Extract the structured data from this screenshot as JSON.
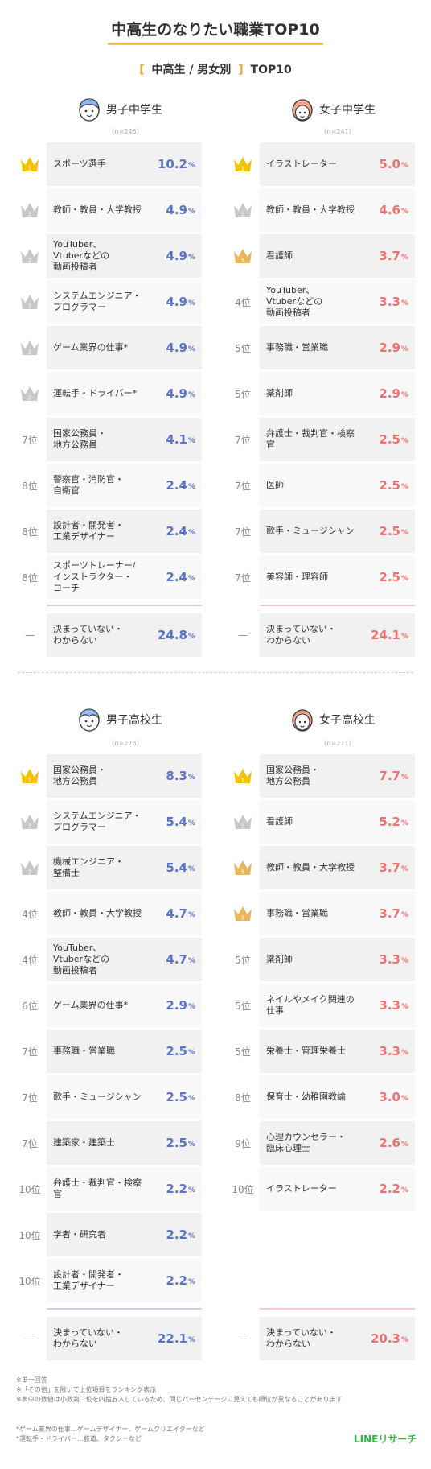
{
  "title": "中高生のなりたい職業TOP10",
  "subtitle": {
    "open": "[",
    "text": "中高生 / 男女別",
    "close": "]",
    "suffix": "TOP10"
  },
  "unit": "%",
  "crown_colors": {
    "gold": "#f2c300",
    "silver": "#c8c8c8",
    "bronze": "#e9b75a"
  },
  "series_colors": {
    "boys": "#5b74c8",
    "girls": "#ee7070"
  },
  "chart_data": [
    {
      "type": "table",
      "title": "男子中学生",
      "sample": "（n=246）",
      "rows": [
        {
          "rank": "1",
          "crown": "gold",
          "job": "スポーツ選手",
          "value": 10.2
        },
        {
          "rank": "2",
          "crown": "silver",
          "job": "教師・教員・大学教授",
          "value": 4.9
        },
        {
          "rank": "2",
          "crown": "silver",
          "job": "YouTuber、\nVtuberなどの\n動画投稿者",
          "value": 4.9
        },
        {
          "rank": "2",
          "crown": "silver",
          "job": "システムエンジニア・\nプログラマー",
          "value": 4.9
        },
        {
          "rank": "2",
          "crown": "silver",
          "job": "ゲーム業界の仕事*",
          "value": 4.9
        },
        {
          "rank": "2",
          "crown": "silver",
          "job": "運転手・ドライバー*",
          "value": 4.9
        },
        {
          "rank": "7位",
          "crown": "",
          "job": "国家公務員・\n地方公務員",
          "value": 4.1
        },
        {
          "rank": "8位",
          "crown": "",
          "job": "警察官・消防官・\n自衛官",
          "value": 2.4
        },
        {
          "rank": "8位",
          "crown": "",
          "job": "設計者・開発者・\n工業デザイナー",
          "value": 2.4
        },
        {
          "rank": "8位",
          "crown": "",
          "job": "スポーツトレーナー/\nインストラクター・\nコーチ",
          "value": 2.4
        }
      ],
      "undecided": {
        "rank": "—",
        "job": "決まっていない・\nわからない",
        "value": 24.8
      }
    },
    {
      "type": "table",
      "title": "女子中学生",
      "sample": "（n=241）",
      "rows": [
        {
          "rank": "1",
          "crown": "gold",
          "job": "イラストレーター",
          "value": 5.0
        },
        {
          "rank": "2",
          "crown": "silver",
          "job": "教師・教員・大学教授",
          "value": 4.6
        },
        {
          "rank": "3",
          "crown": "bronze",
          "job": "看護師",
          "value": 3.7
        },
        {
          "rank": "4位",
          "crown": "",
          "job": "YouTuber、\nVtuberなどの\n動画投稿者",
          "value": 3.3
        },
        {
          "rank": "5位",
          "crown": "",
          "job": "事務職・営業職",
          "value": 2.9
        },
        {
          "rank": "5位",
          "crown": "",
          "job": "薬剤師",
          "value": 2.9
        },
        {
          "rank": "7位",
          "crown": "",
          "job": "弁護士・裁判官・検察官",
          "value": 2.5
        },
        {
          "rank": "7位",
          "crown": "",
          "job": "医師",
          "value": 2.5
        },
        {
          "rank": "7位",
          "crown": "",
          "job": "歌手・ミュージシャン",
          "value": 2.5
        },
        {
          "rank": "7位",
          "crown": "",
          "job": "美容師・理容師",
          "value": 2.5
        }
      ],
      "undecided": {
        "rank": "—",
        "job": "決まっていない・\nわからない",
        "value": 24.1
      }
    },
    {
      "type": "table",
      "title": "男子高校生",
      "sample": "（n=276）",
      "rows": [
        {
          "rank": "1",
          "crown": "gold",
          "job": "国家公務員・\n地方公務員",
          "value": 8.3
        },
        {
          "rank": "2",
          "crown": "silver",
          "job": "システムエンジニア・\nプログラマー",
          "value": 5.4
        },
        {
          "rank": "2",
          "crown": "silver",
          "job": "機械エンジニア・\n整備士",
          "value": 5.4
        },
        {
          "rank": "4位",
          "crown": "",
          "job": "教師・教員・大学教授",
          "value": 4.7
        },
        {
          "rank": "4位",
          "crown": "",
          "job": "YouTuber、\nVtuberなどの\n動画投稿者",
          "value": 4.7
        },
        {
          "rank": "6位",
          "crown": "",
          "job": "ゲーム業界の仕事*",
          "value": 2.9
        },
        {
          "rank": "7位",
          "crown": "",
          "job": "事務職・営業職",
          "value": 2.5
        },
        {
          "rank": "7位",
          "crown": "",
          "job": "歌手・ミュージシャン",
          "value": 2.5
        },
        {
          "rank": "7位",
          "crown": "",
          "job": "建築家・建築士",
          "value": 2.5
        },
        {
          "rank": "10位",
          "crown": "",
          "job": "弁護士・裁判官・検察官",
          "value": 2.2
        },
        {
          "rank": "10位",
          "crown": "",
          "job": "学者・研究者",
          "value": 2.2
        },
        {
          "rank": "10位",
          "crown": "",
          "job": "設計者・開発者・\n工業デザイナー",
          "value": 2.2
        }
      ],
      "undecided": {
        "rank": "—",
        "job": "決まっていない・\nわからない",
        "value": 22.1
      }
    },
    {
      "type": "table",
      "title": "女子高校生",
      "sample": "（n=271）",
      "rows": [
        {
          "rank": "1",
          "crown": "gold",
          "job": "国家公務員・\n地方公務員",
          "value": 7.7
        },
        {
          "rank": "2",
          "crown": "silver",
          "job": "看護師",
          "value": 5.2
        },
        {
          "rank": "3",
          "crown": "bronze",
          "job": "教師・教員・大学教授",
          "value": 3.7
        },
        {
          "rank": "3",
          "crown": "bronze",
          "job": "事務職・営業職",
          "value": 3.7
        },
        {
          "rank": "5位",
          "crown": "",
          "job": "薬剤師",
          "value": 3.3
        },
        {
          "rank": "5位",
          "crown": "",
          "job": "ネイルやメイク関連の\n仕事",
          "value": 3.3
        },
        {
          "rank": "5位",
          "crown": "",
          "job": "栄養士・管理栄養士",
          "value": 3.3
        },
        {
          "rank": "8位",
          "crown": "",
          "job": "保育士・幼稚園教諭",
          "value": 3.0
        },
        {
          "rank": "9位",
          "crown": "",
          "job": "心理カウンセラー・\n臨床心理士",
          "value": 2.6
        },
        {
          "rank": "10位",
          "crown": "",
          "job": "イラストレーター",
          "value": 2.2
        }
      ],
      "undecided": {
        "rank": "—",
        "job": "決まっていない・\nわからない",
        "value": 20.3
      }
    }
  ],
  "notes": [
    "※単一回答",
    "※「その他」を除いて上位項目をランキング表示",
    "※表中の数値は小数第二位を四捨五入しているため、同じパーセンテージに見えても順位が異なることがあります"
  ],
  "footnotes": [
    "*ゲーム業界の仕事…ゲームデザイナー、ゲームクリエイターなど",
    "*運転手・ドライバー…鉄道、タクシーなど"
  ],
  "brand": "LINEリサーチ"
}
